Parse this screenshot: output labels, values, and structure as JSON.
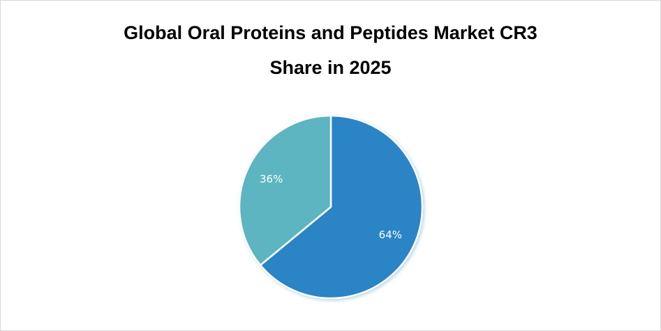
{
  "chart_data": {
    "type": "pie",
    "title_lines": [
      "Global Oral Proteins and Peptides Market CR3",
      "Share in 2025"
    ],
    "slices": [
      {
        "value": 64,
        "label": "64%",
        "color": "#2a84c6"
      },
      {
        "value": 36,
        "label": "36%",
        "color": "#5bb5c0"
      }
    ],
    "start_angle_deg": 0,
    "direction": "clockwise"
  }
}
